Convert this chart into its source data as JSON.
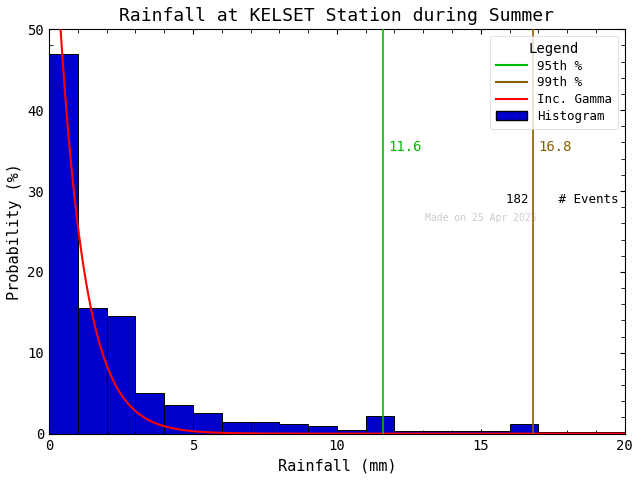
{
  "title": "Rainfall at KELSET Station during Summer",
  "xlabel": "Rainfall (mm)",
  "ylabel": "Probability (%)",
  "xlim": [
    0,
    20
  ],
  "ylim": [
    0,
    50
  ],
  "bar_edges": [
    0,
    1,
    2,
    3,
    4,
    5,
    6,
    7,
    8,
    9,
    10,
    11,
    12,
    13,
    14,
    15,
    16,
    17,
    18,
    19,
    20
  ],
  "bar_heights": [
    47.0,
    15.5,
    14.5,
    5.0,
    3.5,
    2.5,
    1.5,
    1.5,
    1.2,
    1.0,
    0.5,
    2.2,
    0.3,
    0.3,
    0.3,
    0.3,
    1.2,
    0.2,
    0.2,
    0.2
  ],
  "bar_color": "#0000cc",
  "bar_edgecolor": "#000000",
  "line_95_x": 11.6,
  "line_99_x": 16.8,
  "line_95_color": "#00bb00",
  "line_99_color": "#8B6000",
  "gamma_color": "#ff0000",
  "n_events": 182,
  "watermark": "Made on 25 Apr 2025",
  "xticks": [
    0,
    5,
    10,
    15,
    20
  ],
  "yticks": [
    0,
    10,
    20,
    30,
    40,
    50
  ],
  "background_color": "#ffffff",
  "font_family": "monospace",
  "title_fontsize": 13,
  "axis_fontsize": 11,
  "tick_fontsize": 10,
  "legend_fontsize": 9,
  "annotation_fontsize": 10,
  "watermark_fontsize": 7
}
